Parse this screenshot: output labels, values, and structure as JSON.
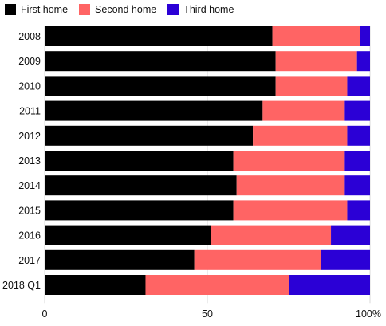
{
  "chart_data": {
    "type": "bar",
    "orientation": "horizontal",
    "stacked": true,
    "percent_stacked": true,
    "categories": [
      "2008",
      "2009",
      "2010",
      "2011",
      "2012",
      "2013",
      "2014",
      "2015",
      "2016",
      "2017",
      "2018 Q1"
    ],
    "series": [
      {
        "name": "First home",
        "color": "#000000",
        "values": [
          70,
          71,
          71,
          67,
          64,
          58,
          59,
          58,
          51,
          46,
          31
        ]
      },
      {
        "name": "Second home",
        "color": "#FF6464",
        "values": [
          27,
          25,
          22,
          25,
          29,
          34,
          33,
          35,
          37,
          39,
          44
        ]
      },
      {
        "name": "Third home",
        "color": "#2B00D6",
        "values": [
          3,
          4,
          7,
          8,
          7,
          8,
          8,
          7,
          12,
          15,
          25
        ]
      }
    ],
    "x_ticks": [
      "0",
      "50",
      "100%"
    ],
    "x_tick_values": [
      0,
      50,
      100
    ],
    "xlim": [
      0,
      100
    ],
    "grid": true,
    "legend_position": "top-left"
  }
}
